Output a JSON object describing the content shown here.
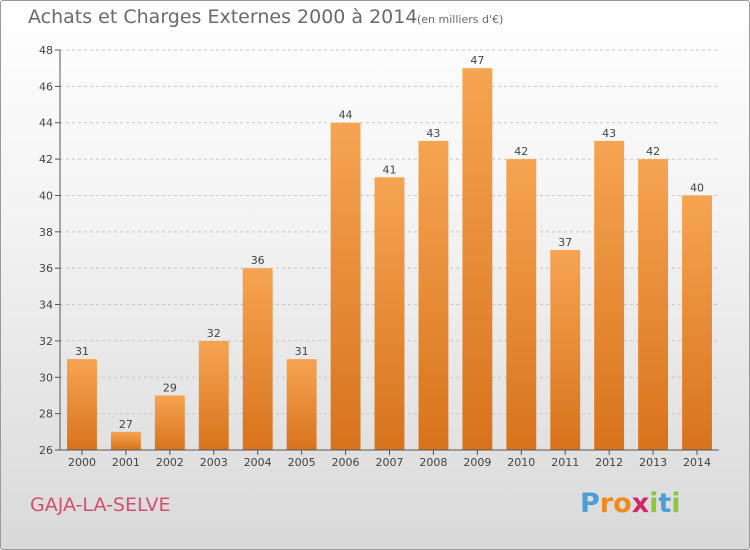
{
  "header": {
    "title": "Achats et Charges Externes 2000 à 2014",
    "subtitle": "(en milliers d'€)"
  },
  "footer": {
    "town": "GAJA-LA-SELVE",
    "logo_letters": [
      "P",
      "r",
      "o",
      "x",
      "i",
      "t",
      "i"
    ]
  },
  "colors": {
    "bar_top": "#f6a452",
    "bar_bottom": "#d8731c",
    "town": "#d64d72",
    "logo": [
      "#4a9fd8",
      "#f08a1c",
      "#f08a1c",
      "#d6236a",
      "#8cc63f",
      "#4a9fd8",
      "#8cc63f"
    ]
  },
  "chart_data": {
    "type": "bar",
    "title": "Achats et Charges Externes 2000 à 2014",
    "subtitle": "(en milliers d'€)",
    "categories": [
      "2000",
      "2001",
      "2002",
      "2003",
      "2004",
      "2005",
      "2006",
      "2007",
      "2008",
      "2009",
      "2010",
      "2011",
      "2012",
      "2013",
      "2014"
    ],
    "values": [
      31,
      27,
      29,
      32,
      36,
      31,
      44,
      41,
      43,
      47,
      42,
      37,
      43,
      42,
      40
    ],
    "ylim": [
      26,
      48
    ],
    "yticks": [
      26,
      28,
      30,
      32,
      34,
      36,
      38,
      40,
      42,
      44,
      46,
      48
    ],
    "grid": true,
    "data_labels": true
  }
}
